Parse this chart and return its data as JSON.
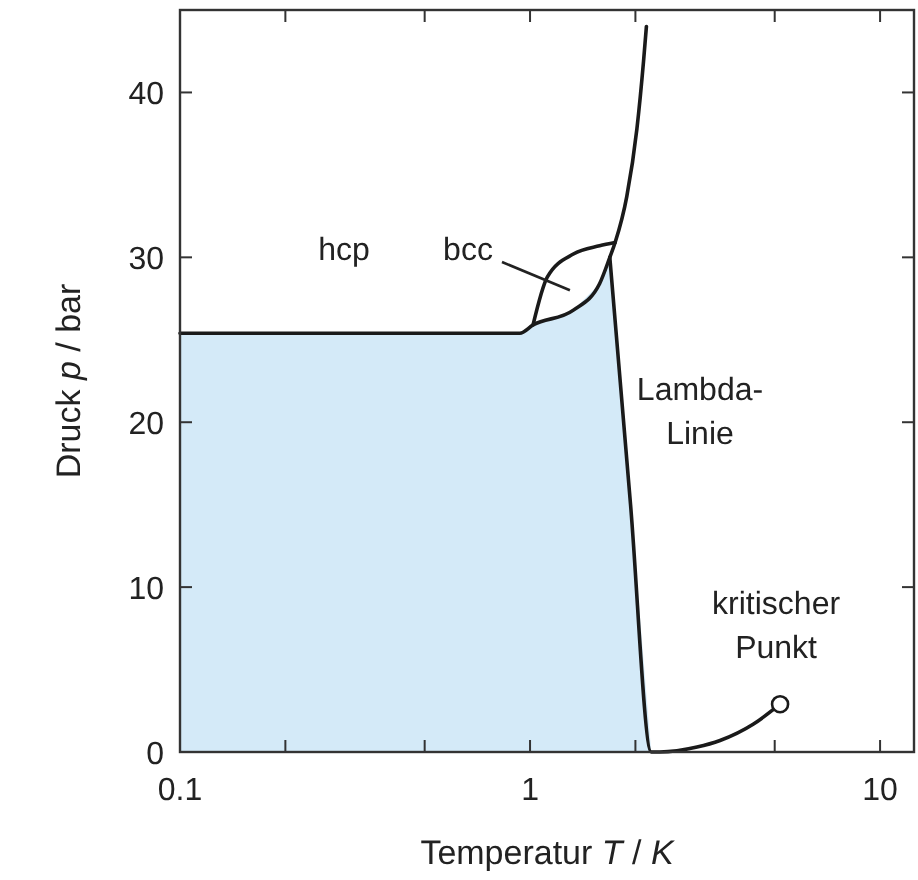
{
  "chart_data": {
    "type": "line",
    "xlabel": "Temperatur T / K",
    "ylabel": "Druck p / bar",
    "log": "x",
    "xlim": [
      0.1,
      12.5
    ],
    "ylim": [
      0,
      45
    ],
    "xticks": [
      0.1,
      {
        "value": 0.2,
        "label": null
      },
      {
        "value": 0.5,
        "label": null
      },
      1,
      {
        "value": 2,
        "label": null
      },
      {
        "value": 5,
        "label": null
      },
      10
    ],
    "yticks": [
      0,
      10,
      20,
      30,
      40
    ],
    "grid": false,
    "line_style": "solid",
    "marker": "none",
    "series": [
      {
        "type": "area",
        "color": "#d4eaf8",
        "x": [
          0.1,
          0.935,
          1.02,
          1.33,
          1.58,
          1.69,
          2.22
        ],
        "values": [
          25.4,
          25.4,
          25.9,
          26.8,
          28.4,
          30.0,
          0
        ]
      },
      {
        "color": "#1a1a1a",
        "x": [
          0.1,
          0.5,
          0.935,
          1.02,
          1.33,
          1.58,
          1.69,
          1.75,
          1.89,
          2.02,
          2.11,
          2.15
        ],
        "values": [
          25.4,
          25.4,
          25.4,
          25.9,
          26.8,
          28.4,
          30.0,
          30.9,
          33.7,
          37.8,
          41.9,
          44.0
        ]
      },
      {
        "color": "#1a1a1a",
        "x": [
          1.02,
          1.12,
          1.33,
          1.58,
          1.75
        ],
        "values": [
          25.9,
          28.8,
          30.2,
          30.7,
          30.9
        ]
      },
      {
        "color": "#1a1a1a",
        "x": [
          1.69,
          1.937,
          2.22,
          2.35,
          3.0,
          3.49,
          4.35,
          5.18
        ],
        "values": [
          30.0,
          15.0,
          0,
          0,
          0.3,
          0.7,
          1.7,
          2.9
        ]
      },
      {
        "type": "scatter",
        "marker": "circle",
        "color": "#1a1a1a",
        "x": [
          5.18
        ],
        "values": [
          2.9
        ]
      }
    ],
    "annotations": [
      "hcp",
      "bcc",
      "Lambda-\nLinie",
      {
        "text": "kritischer\nPunkt",
        "x": 5.18,
        "y": 2.9
      }
    ]
  }
}
